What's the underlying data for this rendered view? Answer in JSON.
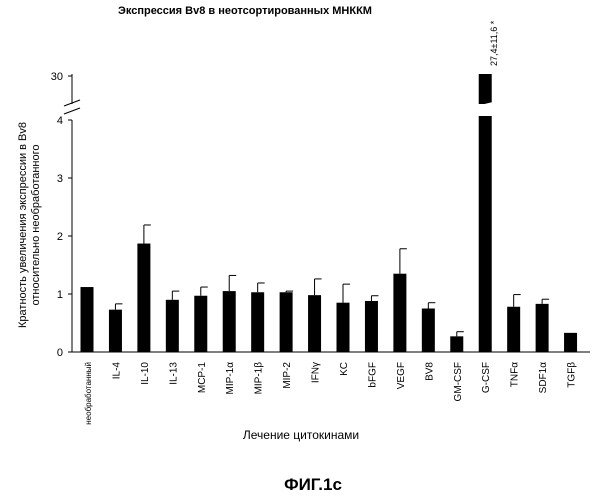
{
  "chart_data": {
    "type": "bar",
    "title": "Экспрессия Bv8 в неотсортированных МНККМ",
    "ylabel_line1": "Кратность увеличения экспрессии в Bv8",
    "ylabel_line2": "относительно необработанного",
    "xlabel": "Лечение цитокинами",
    "y_ticks": [
      "0",
      "1",
      "2",
      "3",
      "4",
      "30"
    ],
    "ylim_lower": [
      0,
      4.1
    ],
    "y_break": "4–30",
    "categories": [
      "необработанный",
      "IL-4",
      "IL-10",
      "IL-13",
      "MCP-1",
      "MIP-1α",
      "MIP-1β",
      "MIP-2",
      "IFNγ",
      "KC",
      "bFGF",
      "VEGF",
      "BV8",
      "GM-CSF",
      "G-CSF",
      "TNFα",
      "SDF1α",
      "TGFβ"
    ],
    "values": [
      1.12,
      0.73,
      1.87,
      0.9,
      0.97,
      1.05,
      1.03,
      1.03,
      0.98,
      0.85,
      0.88,
      1.35,
      0.75,
      0.27,
      27.4,
      0.78,
      0.83,
      0.33
    ],
    "errors": [
      0.0,
      0.1,
      0.32,
      0.15,
      0.15,
      0.27,
      0.16,
      0.02,
      0.28,
      0.32,
      0.09,
      0.43,
      0.1,
      0.08,
      11.6,
      0.21,
      0.08,
      0.0
    ],
    "annotation": "27,4±11,6 *",
    "annotated_category": "G-CSF"
  },
  "figure_label": "ФИГ.1с"
}
